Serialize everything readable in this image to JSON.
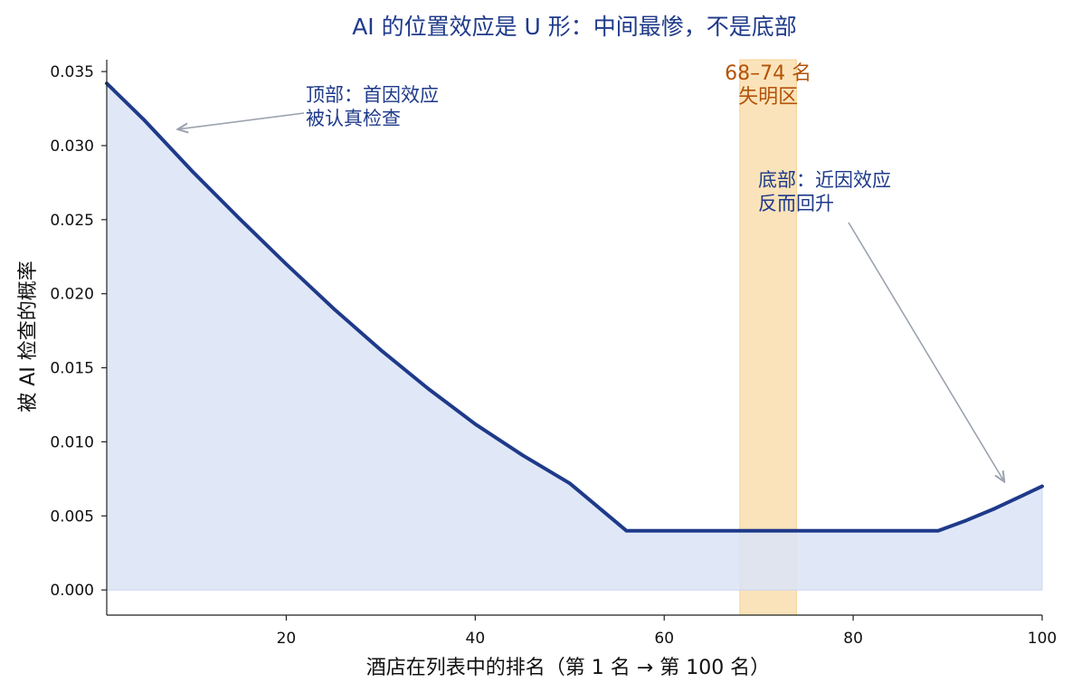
{
  "chart_data": {
    "type": "area",
    "title": "AI 的位置效应是 U 形：中间最惨，不是底部",
    "xlabel": "酒店在列表中的排名（第 1 名 → 第 100 名）",
    "ylabel": "被 AI 检查的概率",
    "xlim": [
      1,
      100
    ],
    "ylim": [
      -0.0017,
      0.0358
    ],
    "x_ticks": [
      20,
      40,
      60,
      80,
      100
    ],
    "y_ticks": [
      0.0,
      0.005,
      0.01,
      0.015,
      0.02,
      0.025,
      0.03,
      0.035
    ],
    "x_tick_labels": [
      "20",
      "40",
      "60",
      "80",
      "100"
    ],
    "y_tick_labels": [
      "0.000",
      "0.005",
      "0.010",
      "0.015",
      "0.020",
      "0.025",
      "0.030",
      "0.035"
    ],
    "grid": false,
    "series": [
      {
        "color": "#1f3a8a",
        "fill_color": "#dbe4f7",
        "x": [
          1,
          5,
          10,
          15,
          20,
          25,
          30,
          35,
          40,
          45,
          50,
          56,
          60,
          65,
          70,
          75,
          80,
          85,
          89,
          92,
          95,
          98,
          100
        ],
        "y": [
          0.0342,
          0.0317,
          0.0283,
          0.0251,
          0.022,
          0.019,
          0.0162,
          0.0136,
          0.0112,
          0.0091,
          0.0072,
          0.004,
          0.004,
          0.004,
          0.004,
          0.004,
          0.004,
          0.004,
          0.004,
          0.0047,
          0.0055,
          0.0064,
          0.007
        ]
      }
    ],
    "highlight_band": {
      "x_range": [
        68,
        74
      ],
      "color": "#f5c065",
      "label_lines": [
        "68–74 名",
        "失明区"
      ]
    },
    "annotations": [
      {
        "lines": [
          "顶部：首因效应",
          "被认真检查"
        ],
        "arrow_target": [
          8.5,
          0.0311
        ]
      },
      {
        "lines": [
          "底部：近因效应",
          "反而回升"
        ],
        "arrow_target": [
          96,
          0.0073
        ]
      }
    ]
  }
}
